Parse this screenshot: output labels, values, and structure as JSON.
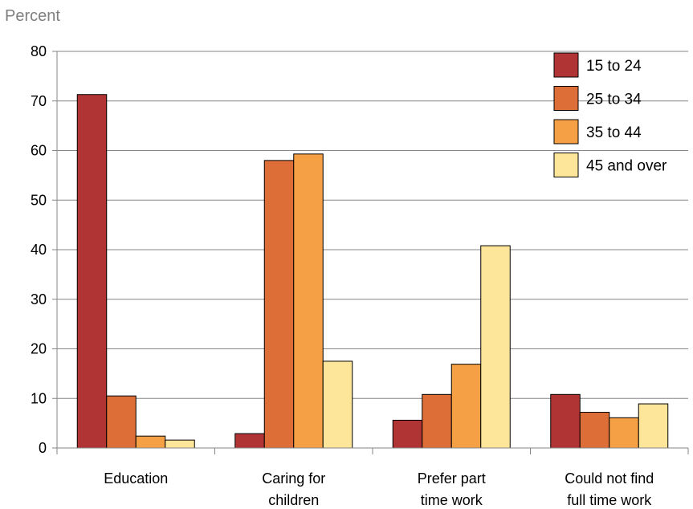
{
  "chart_data": {
    "type": "bar",
    "title": "",
    "xlabel": "",
    "ylabel": "Percent",
    "ylim": [
      0,
      80
    ],
    "yticks": [
      0,
      10,
      20,
      30,
      40,
      50,
      60,
      70,
      80
    ],
    "grid": true,
    "legend_position": "top-right",
    "categories": [
      [
        "Education"
      ],
      [
        "Caring for",
        "children"
      ],
      [
        "Prefer part",
        "time work"
      ],
      [
        "Could not find",
        "full time work"
      ]
    ],
    "series": [
      {
        "name": "15 to 24",
        "color": "#b03434",
        "values": [
          71.3,
          2.9,
          5.6,
          10.8
        ]
      },
      {
        "name": "25 to 34",
        "color": "#dd6e37",
        "values": [
          10.5,
          58.0,
          10.8,
          7.2
        ]
      },
      {
        "name": "35 to 44",
        "color": "#f5a045",
        "values": [
          2.4,
          59.3,
          16.9,
          6.1
        ]
      },
      {
        "name": "45 and over",
        "color": "#fde59a",
        "values": [
          1.6,
          17.5,
          40.8,
          8.9
        ]
      }
    ]
  }
}
